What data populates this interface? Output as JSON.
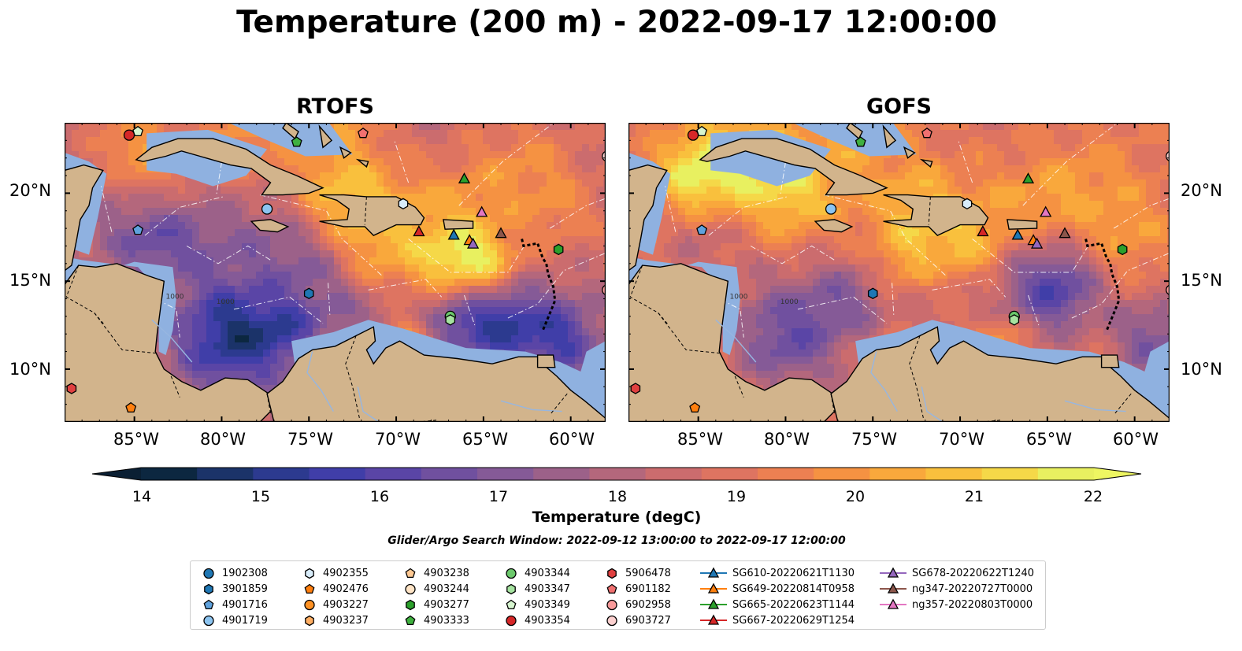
{
  "title": "Temperature (200 m) - 2022-09-17 12:00:00",
  "panels": [
    {
      "title": "RTOFS",
      "model_key": "rtofs"
    },
    {
      "title": "GOFS",
      "model_key": "gofs"
    }
  ],
  "lat_ticks": [
    "20°N",
    "15°N",
    "10°N"
  ],
  "lon_ticks": [
    "85°W",
    "80°W",
    "75°W",
    "70°W",
    "65°W",
    "60°W"
  ],
  "colorbar": {
    "label": "Temperature (degC)",
    "ticks": [
      "14",
      "15",
      "16",
      "17",
      "18",
      "19",
      "20",
      "21",
      "22"
    ],
    "range": [
      14,
      22
    ],
    "extend": "both",
    "colors": [
      "#0c2740",
      "#1b3369",
      "#2c3a8f",
      "#403ea8",
      "#5a45a6",
      "#70509f",
      "#855a97",
      "#9c6189",
      "#b4677c",
      "#cb6c6e",
      "#de7461",
      "#ec8052",
      "#f59242",
      "#f9a83c",
      "#f9c03d",
      "#f5d848",
      "#e8f060"
    ]
  },
  "search_window": "Glider/Argo Search Window: 2022-09-12 13:00:00 to 2022-09-17 12:00:00",
  "contour_labels": [
    "1000",
    "1000"
  ],
  "colors": {
    "land": "#d2b48c",
    "shelf": "#8fb1e0",
    "deep_pacific": "#0b2539"
  },
  "legend": [
    {
      "label": "1902308",
      "marker": "circle",
      "color": "#1f77b4"
    },
    {
      "label": "3901859",
      "marker": "hexagon",
      "color": "#1f77b4"
    },
    {
      "label": "4901716",
      "marker": "pentagon",
      "color": "#5fa2dd"
    },
    {
      "label": "4901719",
      "marker": "circle",
      "color": "#8cc4f0"
    },
    {
      "label": "4902355",
      "marker": "hexagon",
      "color": "#d8ecfa"
    },
    {
      "label": "4902476",
      "marker": "pentagon",
      "color": "#ff7f0e"
    },
    {
      "label": "4903227",
      "marker": "circle",
      "color": "#ff9224"
    },
    {
      "label": "4903237",
      "marker": "hexagon",
      "color": "#ffae63"
    },
    {
      "label": "4903238",
      "marker": "pentagon",
      "color": "#ffc993"
    },
    {
      "label": "4903244",
      "marker": "circle",
      "color": "#ffe4c6"
    },
    {
      "label": "4903277",
      "marker": "hexagon",
      "color": "#2ca02c"
    },
    {
      "label": "4903333",
      "marker": "pentagon",
      "color": "#3fb03f"
    },
    {
      "label": "4903344",
      "marker": "circle",
      "color": "#6cc96c"
    },
    {
      "label": "4903347",
      "marker": "hexagon",
      "color": "#a6e3a0"
    },
    {
      "label": "4903349",
      "marker": "pentagon",
      "color": "#d6f5cf"
    },
    {
      "label": "4903354",
      "marker": "circle",
      "color": "#d62728"
    },
    {
      "label": "5906478",
      "marker": "hexagon",
      "color": "#e04040"
    },
    {
      "label": "6901182",
      "marker": "pentagon",
      "color": "#f07070"
    },
    {
      "label": "6902958",
      "marker": "circle",
      "color": "#f89a9a"
    },
    {
      "label": "6903727",
      "marker": "circle",
      "color": "#fcd0cf"
    },
    {
      "label": "SG610-20220621T1130",
      "marker": "triangle",
      "color": "#1f77b4"
    },
    {
      "label": "SG649-20220814T0958",
      "marker": "triangle",
      "color": "#ff7f0e"
    },
    {
      "label": "SG665-20220623T1144",
      "marker": "triangle",
      "color": "#2ca02c"
    },
    {
      "label": "SG667-20220629T1254",
      "marker": "triangle",
      "color": "#d62728"
    },
    {
      "label": "SG678-20220622T1240",
      "marker": "triangle",
      "color": "#9467bd"
    },
    {
      "label": "ng347-20220727T0000",
      "marker": "triangle",
      "color": "#8c564b"
    },
    {
      "label": "ng357-20220803T0000",
      "marker": "triangle",
      "color": "#e377c2"
    }
  ],
  "observations": [
    {
      "id": "4903354",
      "lon": -85.3,
      "lat": 23.3
    },
    {
      "id": "4903349",
      "lon": -84.8,
      "lat": 23.5
    },
    {
      "id": "4903333",
      "lon": -75.7,
      "lat": 22.9
    },
    {
      "id": "6901182",
      "lon": -71.9,
      "lat": 23.4
    },
    {
      "id": "6903727",
      "lon": -57.9,
      "lat": 22.1
    },
    {
      "id": "4901719",
      "lon": -77.4,
      "lat": 19.1
    },
    {
      "id": "4902355",
      "lon": -69.6,
      "lat": 19.4
    },
    {
      "id": "4901716",
      "lon": -84.8,
      "lat": 17.9
    },
    {
      "id": "SG665-20220623T1144",
      "lon": -66.1,
      "lat": 20.8
    },
    {
      "id": "ng357-20220803T0000",
      "lon": -65.1,
      "lat": 18.9
    },
    {
      "id": "SG667-20220629T1254",
      "lon": -68.7,
      "lat": 17.8
    },
    {
      "id": "SG610-20220621T1130",
      "lon": -66.7,
      "lat": 17.6
    },
    {
      "id": "SG649-20220814T0958",
      "lon": -65.8,
      "lat": 17.3
    },
    {
      "id": "SG678-20220622T1240",
      "lon": -65.6,
      "lat": 17.1
    },
    {
      "id": "ng347-20220727T0000",
      "lon": -64.0,
      "lat": 17.7
    },
    {
      "id": "4903277",
      "lon": -60.7,
      "lat": 16.8
    },
    {
      "id": "3901859",
      "lon": -75.0,
      "lat": 14.3
    },
    {
      "id": "6902958",
      "lon": -57.9,
      "lat": 14.5
    },
    {
      "id": "4903344",
      "lon": -66.9,
      "lat": 13.0
    },
    {
      "id": "4903347",
      "lon": -66.9,
      "lat": 12.8
    },
    {
      "id": "5906478",
      "lon": -88.6,
      "lat": 8.9
    },
    {
      "id": "4902476",
      "lon": -85.2,
      "lat": 7.8
    }
  ],
  "extent": {
    "lon": [
      -89,
      -58
    ],
    "lat": [
      7,
      24
    ]
  }
}
